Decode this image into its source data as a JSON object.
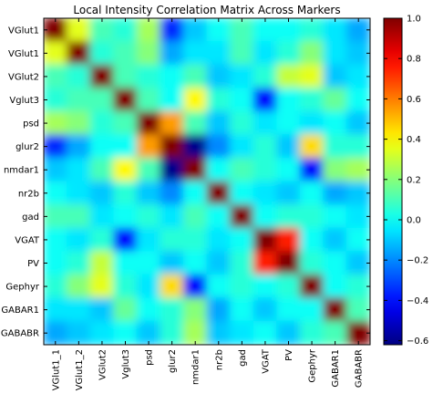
{
  "chart_data": {
    "type": "heatmap",
    "title": "Local Intensity Correlation Matrix Across Markers",
    "x_labels": [
      "VGlut1_1",
      "VGlut1_2",
      "VGlut2",
      "Vglut3",
      "psd",
      "glur2",
      "nmdar1",
      "nr2b",
      "gad",
      "VGAT",
      "PV",
      "Gephyr",
      "GABAR1",
      "GABABR"
    ],
    "y_labels": [
      "VGlut1",
      "VGlut1",
      "VGlut2",
      "Vglut3",
      "psd",
      "glur2",
      "nmdar1",
      "nr2b",
      "gad",
      "VGAT",
      "PV",
      "Gephyr",
      "GABAR1",
      "GABABR"
    ],
    "values": [
      [
        1.0,
        0.35,
        0.1,
        0.05,
        0.25,
        -0.35,
        -0.1,
        0.0,
        0.1,
        0.0,
        0.0,
        0.05,
        -0.05,
        -0.15
      ],
      [
        0.35,
        1.0,
        0.05,
        0.1,
        0.2,
        -0.15,
        -0.05,
        -0.05,
        0.1,
        -0.05,
        0.05,
        0.2,
        -0.05,
        -0.1
      ],
      [
        0.1,
        0.05,
        1.0,
        0.1,
        0.05,
        0.0,
        0.1,
        -0.1,
        -0.05,
        0.05,
        0.3,
        0.35,
        -0.1,
        -0.05
      ],
      [
        0.05,
        0.1,
        0.1,
        1.0,
        0.1,
        0.0,
        0.4,
        0.05,
        0.0,
        -0.4,
        0.0,
        0.05,
        0.15,
        0.0
      ],
      [
        0.25,
        0.2,
        0.05,
        0.1,
        1.0,
        0.55,
        0.1,
        -0.1,
        0.05,
        -0.05,
        0.0,
        -0.05,
        0.0,
        -0.1
      ],
      [
        -0.35,
        -0.15,
        0.0,
        0.0,
        0.55,
        1.0,
        -0.6,
        -0.2,
        -0.05,
        0.05,
        -0.1,
        0.45,
        0.05,
        0.05
      ],
      [
        -0.1,
        -0.05,
        0.1,
        0.4,
        0.1,
        -0.6,
        1.0,
        0.0,
        0.1,
        0.05,
        0.0,
        -0.4,
        0.2,
        0.25
      ],
      [
        0.0,
        -0.05,
        -0.1,
        0.05,
        -0.1,
        -0.2,
        0.0,
        1.0,
        0.0,
        -0.05,
        -0.1,
        0.0,
        -0.15,
        -0.1
      ],
      [
        0.1,
        0.1,
        -0.05,
        0.0,
        0.05,
        -0.05,
        0.1,
        0.0,
        1.0,
        0.0,
        0.05,
        0.05,
        0.0,
        -0.05
      ],
      [
        0.0,
        -0.05,
        0.05,
        -0.4,
        -0.05,
        0.05,
        0.05,
        -0.05,
        0.0,
        1.0,
        0.75,
        0.0,
        -0.1,
        0.0
      ],
      [
        0.0,
        0.05,
        0.3,
        0.0,
        0.0,
        -0.1,
        0.0,
        -0.1,
        0.05,
        0.75,
        1.0,
        0.05,
        0.0,
        -0.1
      ],
      [
        0.05,
        0.2,
        0.35,
        0.05,
        -0.05,
        0.45,
        -0.4,
        0.0,
        0.05,
        0.0,
        0.05,
        1.0,
        0.0,
        0.05
      ],
      [
        -0.05,
        -0.05,
        -0.1,
        0.15,
        0.0,
        0.05,
        0.2,
        -0.15,
        0.0,
        -0.1,
        0.0,
        0.0,
        1.0,
        0.1
      ],
      [
        -0.15,
        -0.1,
        -0.05,
        0.0,
        -0.1,
        0.05,
        0.25,
        -0.1,
        -0.05,
        0.0,
        -0.1,
        0.05,
        0.1,
        1.0
      ]
    ],
    "colormap": "jet",
    "vmin": -0.62,
    "vmax": 1.0,
    "colorbar_ticks": [
      "1.0",
      "0.8",
      "0.6",
      "0.4",
      "0.2",
      "0.0",
      "−0.2",
      "−0.4",
      "−0.6"
    ],
    "colorbar_tick_values": [
      1.0,
      0.8,
      0.6,
      0.4,
      0.2,
      0.0,
      -0.2,
      -0.4,
      -0.6
    ],
    "interpolation": "smooth"
  }
}
